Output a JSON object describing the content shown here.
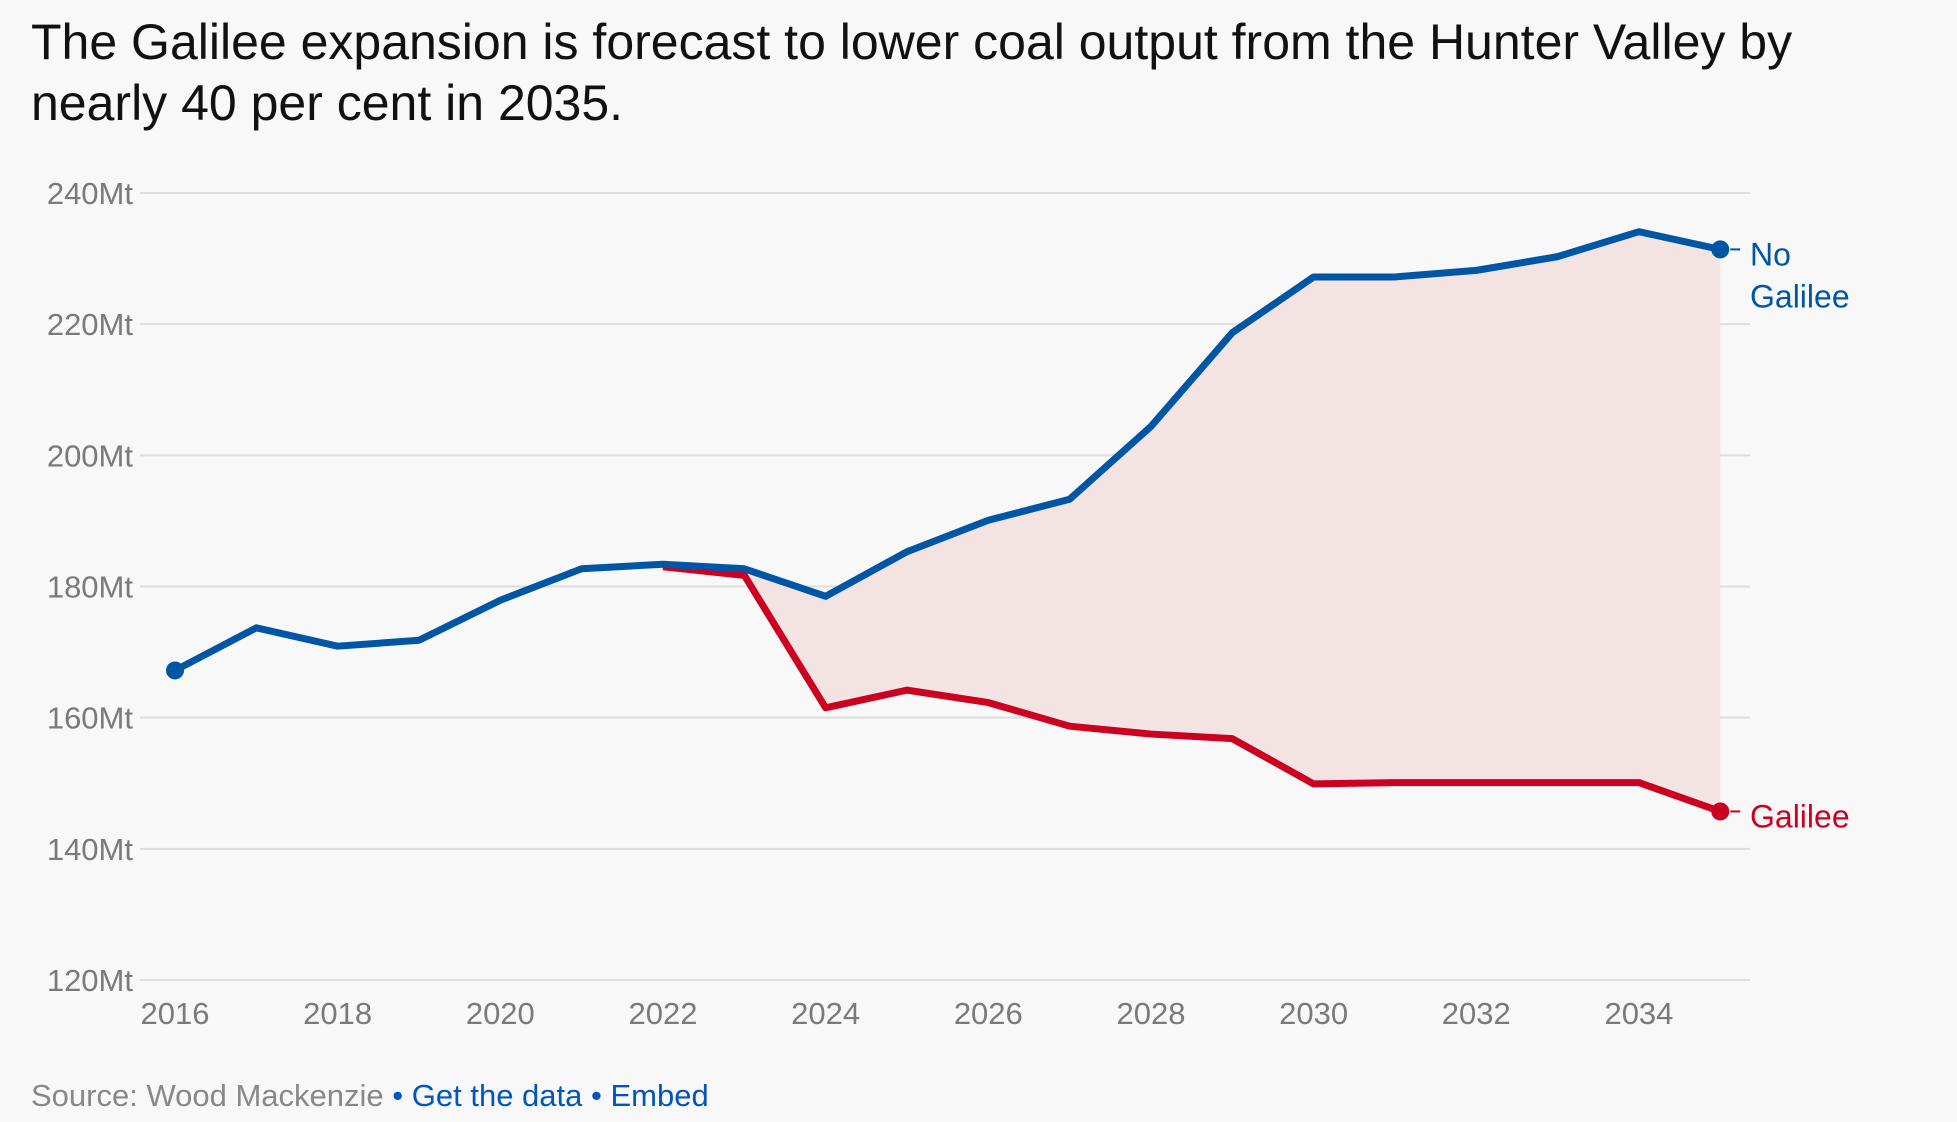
{
  "title": "The Galilee expansion is forecast to lower coal output from the Hunter Valley by nearly 40 per cent in 2035.",
  "footer": {
    "source": "Source: Wood Mackenzie",
    "separator": "•",
    "get_data": "Get the data",
    "embed": "Embed"
  },
  "chart_data": {
    "type": "line",
    "title": "The Galilee expansion is forecast to lower coal output from the Hunter Valley by nearly 40 per cent in 2035.",
    "xlabel": "",
    "ylabel": "",
    "xlim": [
      2016,
      2035
    ],
    "ylim": [
      120,
      240
    ],
    "yticks": [
      120,
      140,
      160,
      180,
      200,
      220,
      240
    ],
    "ytick_labels": [
      "120Mt",
      "140Mt",
      "160Mt",
      "180Mt",
      "200Mt",
      "220Mt",
      "240Mt"
    ],
    "xticks": [
      2016,
      2018,
      2020,
      2022,
      2024,
      2026,
      2028,
      2030,
      2032,
      2034
    ],
    "xtick_labels": [
      "2016",
      "2018",
      "2020",
      "2022",
      "2024",
      "2026",
      "2028",
      "2030",
      "2032",
      "2034"
    ],
    "grid": true,
    "series": [
      {
        "name": "No Galilee",
        "label_lines": [
          "No",
          "Galilee"
        ],
        "color": "#0055a5",
        "x": [
          2016,
          2017,
          2018,
          2019,
          2020,
          2021,
          2022,
          2023,
          2024,
          2025,
          2026,
          2027,
          2028,
          2029,
          2030,
          2031,
          2032,
          2033,
          2034,
          2035
        ],
        "values": [
          167.2,
          173.7,
          170.9,
          171.8,
          177.9,
          182.7,
          183.4,
          182.7,
          178.5,
          185.3,
          190.1,
          193.3,
          204.4,
          218.7,
          227.2,
          227.2,
          228.2,
          230.3,
          234.1,
          231.4
        ]
      },
      {
        "name": "Galilee",
        "label_lines": [
          "Galilee"
        ],
        "color": "#cc0020",
        "x": [
          2022,
          2023,
          2024,
          2025,
          2026,
          2027,
          2028,
          2029,
          2030,
          2031,
          2032,
          2033,
          2034,
          2035
        ],
        "values": [
          183.0,
          181.7,
          161.5,
          164.2,
          162.3,
          158.7,
          157.5,
          156.8,
          149.9,
          150.1,
          150.1,
          150.1,
          150.1,
          145.7
        ]
      }
    ],
    "shaded_gap_color": "#f3e4e3"
  }
}
